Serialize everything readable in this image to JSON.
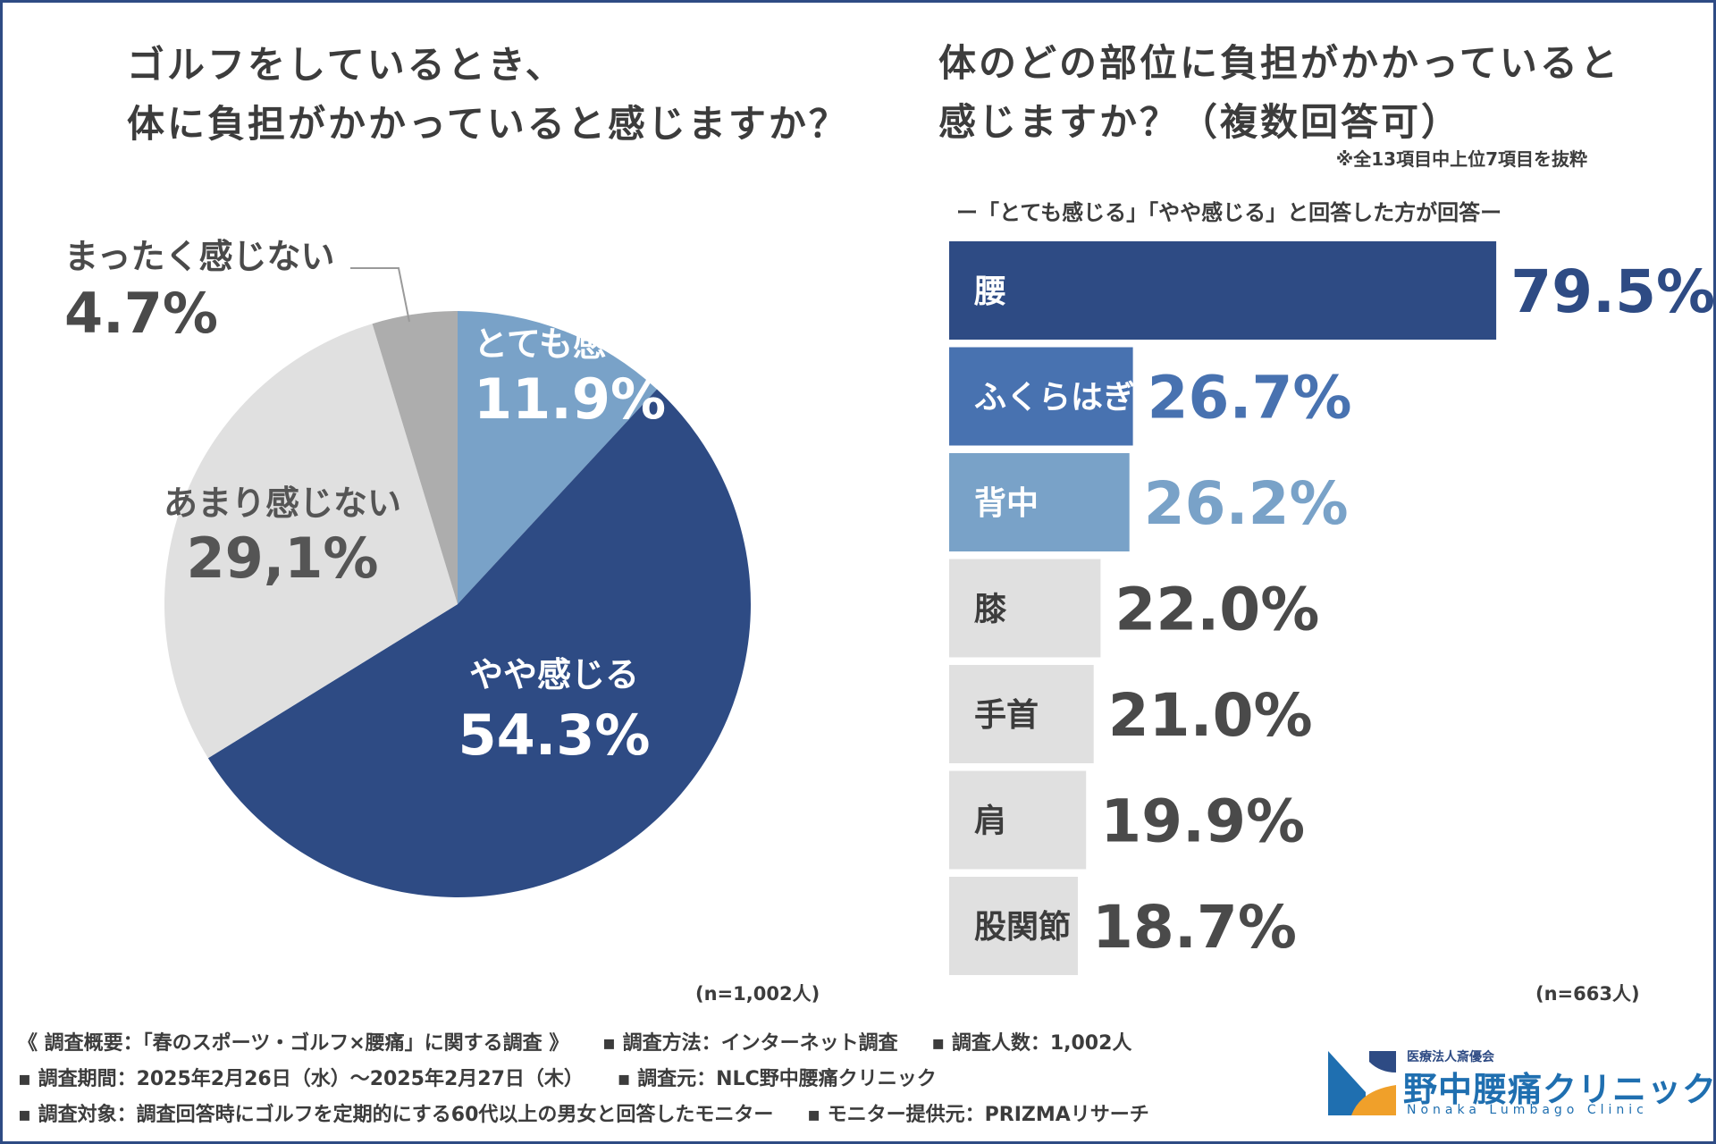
{
  "left_title": [
    "ゴルフをしているとき、",
    "体に負担がかかっていると感じますか？"
  ],
  "right_title": [
    "体のどの部位に負担がかかっていると",
    "感じますか？（複数回答可）"
  ],
  "right_note": "※全13項目中上位7項目を抜粋",
  "right_subtitle": "ー「とても感じる」「やや感じる」と回答した方が回答ー",
  "n_left": "(n=1,002人)",
  "n_right": "(n=663人)",
  "colors": {
    "dark_navy": "#2e4b84",
    "mid_blue": "#4872b0",
    "light_blue": "#79a2c8",
    "light_gray": "#e0e0e0",
    "mid_gray": "#adadad",
    "text_gray": "#4a4a4a"
  },
  "chart_data": [
    {
      "type": "pie",
      "title": "ゴルフをしているとき、体に負担がかかっていると感じますか？",
      "start": "12 o'clock, clockwise",
      "slices": [
        {
          "label": "とても感じる",
          "value": 11.9,
          "display": "11.9%",
          "color": "#79a2c8"
        },
        {
          "label": "やや感じる",
          "value": 54.3,
          "display": "54.3%",
          "color": "#2e4b84"
        },
        {
          "label": "あまり感じない",
          "value": 29.1,
          "display": "29,1%",
          "color": "#e0e0e0"
        },
        {
          "label": "まったく感じない",
          "value": 4.7,
          "display": "4.7%",
          "color": "#adadad"
        }
      ],
      "n": "n=1,002人"
    },
    {
      "type": "bar",
      "orientation": "horizontal",
      "title": "体のどの部位に負担がかかっていると感じますか？（複数回答可）",
      "categories": [
        "腰",
        "ふくらはぎ",
        "背中",
        "膝",
        "手首",
        "肩",
        "股関節"
      ],
      "values": [
        79.5,
        26.7,
        26.2,
        22.0,
        21.0,
        19.9,
        18.7
      ],
      "value_labels": [
        "79.5%",
        "26.7%",
        "26.2%",
        "22.0%",
        "21.0%",
        "19.9%",
        "18.7%"
      ],
      "bar_colors": [
        "#2e4b84",
        "#4872b0",
        "#79a2c8",
        "#e0e0e0",
        "#e0e0e0",
        "#e0e0e0",
        "#e0e0e0"
      ],
      "label_colors": [
        "#ffffff",
        "#ffffff",
        "#ffffff",
        "#3c3c3c",
        "#3c3c3c",
        "#3c3c3c",
        "#3c3c3c"
      ],
      "value_colors": [
        "#2e4b84",
        "#4872b0",
        "#79a2c8",
        "#4a4a4a",
        "#4a4a4a",
        "#4a4a4a",
        "#4a4a4a"
      ],
      "xlim": [
        0,
        100
      ],
      "n": "n=663人"
    }
  ],
  "footer": {
    "rows": [
      [
        "《 調査概要：「春のスポーツ・ゴルフ×腰痛」に関する調査 》",
        "▪ 調査方法：インターネット調査",
        "▪ 調査人数：1,002人"
      ],
      [
        "▪ 調査期間：2025年2月26日（水）〜2025年2月27日（木）",
        "▪ 調査元：NLC野中腰痛クリニック"
      ],
      [
        "▪ 調査対象：調査回答時にゴルフを定期的にする60代以上の男女と回答したモニター",
        "▪ モニター提供元：PRIZMAリサーチ"
      ]
    ]
  },
  "logo": {
    "corp": "医療法人斎優会",
    "name": "野中腰痛クリニック",
    "en": "Nonaka Lumbago Clinic"
  }
}
